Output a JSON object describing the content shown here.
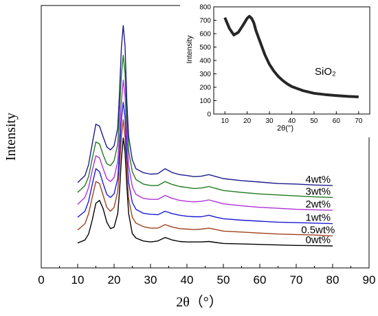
{
  "chart_data": [
    {
      "type": "line",
      "xlabel": "2θ（°）",
      "ylabel": "Intensity",
      "xlim": [
        0,
        90
      ],
      "xticks": [
        "0",
        "10",
        "20",
        "30",
        "40",
        "50",
        "60",
        "70",
        "80",
        "90"
      ],
      "y_tick_labels_shown": false,
      "grid": false,
      "series": [
        {
          "name": "0wt%",
          "color": "#000000",
          "x": [
            10,
            12,
            13,
            14,
            15,
            16,
            17,
            18,
            19,
            20,
            21,
            21.5,
            22,
            22.5,
            23,
            23.5,
            24,
            25,
            26,
            28,
            30,
            32,
            34,
            36,
            38,
            40,
            42,
            44,
            46,
            48,
            50,
            55,
            60,
            65,
            70,
            75,
            80
          ],
          "y": [
            0.6,
            1.2,
            2.4,
            5.2,
            8.6,
            9.2,
            7.5,
            4.8,
            3.5,
            3.8,
            6.5,
            11.0,
            17.5,
            21.8,
            19.0,
            12.0,
            6.5,
            2.5,
            1.6,
            1.0,
            0.8,
            1.0,
            1.7,
            1.2,
            0.9,
            0.8,
            0.8,
            0.8,
            0.9,
            0.7,
            0.5,
            0.4,
            0.3,
            0.2,
            0.1,
            0.05,
            0.0
          ]
        },
        {
          "name": "0.5wt%",
          "color": "#a0401e",
          "x": [
            10,
            12,
            13,
            14,
            15,
            16,
            17,
            18,
            19,
            20,
            21,
            21.5,
            22,
            22.5,
            23,
            23.5,
            24,
            25,
            26,
            28,
            30,
            32,
            34,
            36,
            38,
            40,
            42,
            44,
            46,
            48,
            50,
            55,
            60,
            65,
            70,
            75,
            80
          ],
          "y": [
            3.2,
            4.5,
            6.5,
            9.8,
            13.0,
            12.6,
            10.2,
            7.8,
            7.0,
            7.8,
            11.0,
            16.0,
            22.0,
            25.5,
            22.0,
            14.5,
            9.5,
            5.8,
            4.6,
            3.9,
            3.6,
            3.6,
            4.3,
            3.8,
            3.5,
            3.4,
            3.3,
            3.4,
            3.6,
            3.3,
            3.0,
            2.8,
            2.6,
            2.4,
            2.3,
            2.2,
            2.0
          ]
        },
        {
          "name": "1wt%",
          "color": "#1a1ad4",
          "x": [
            10,
            12,
            13,
            14,
            15,
            16,
            17,
            18,
            19,
            20,
            21,
            21.5,
            22,
            22.5,
            23,
            23.5,
            24,
            25,
            26,
            28,
            30,
            32,
            34,
            36,
            38,
            40,
            42,
            44,
            46,
            48,
            50,
            55,
            60,
            65,
            70,
            75,
            80
          ],
          "y": [
            5.8,
            7.0,
            9.0,
            12.4,
            15.6,
            15.0,
            12.6,
            10.4,
            9.8,
            10.5,
            13.6,
            19.0,
            25.5,
            29.0,
            26.0,
            18.0,
            12.8,
            8.8,
            7.4,
            6.6,
            6.4,
            6.3,
            7.0,
            6.5,
            6.2,
            6.0,
            5.9,
            5.9,
            6.2,
            5.8,
            5.5,
            5.2,
            5.0,
            4.8,
            4.7,
            4.6,
            4.5
          ]
        },
        {
          "name": "2wt%",
          "color": "#b030d8",
          "x": [
            10,
            12,
            13,
            14,
            15,
            16,
            17,
            18,
            19,
            20,
            21,
            21.5,
            22,
            22.5,
            23,
            23.5,
            24,
            25,
            26,
            28,
            30,
            32,
            34,
            36,
            38,
            40,
            42,
            44,
            46,
            48,
            50,
            55,
            60,
            65,
            70,
            75,
            80
          ],
          "y": [
            8.4,
            9.8,
            11.8,
            15.2,
            18.2,
            17.8,
            15.6,
            13.6,
            13.0,
            13.8,
            17.0,
            22.5,
            29.0,
            33.5,
            30.5,
            22.0,
            16.2,
            12.0,
            10.4,
            9.6,
            9.4,
            9.4,
            10.2,
            9.6,
            9.2,
            9.0,
            8.9,
            9.0,
            9.3,
            8.9,
            8.5,
            8.1,
            7.8,
            7.6,
            7.4,
            7.3,
            7.2
          ]
        },
        {
          "name": "3wt%",
          "color": "#1e7a1e",
          "x": [
            10,
            12,
            13,
            14,
            15,
            16,
            17,
            18,
            19,
            20,
            21,
            21.5,
            22,
            22.5,
            23,
            23.5,
            24,
            25,
            26,
            28,
            30,
            32,
            34,
            36,
            38,
            40,
            42,
            44,
            46,
            48,
            50,
            55,
            60,
            65,
            70,
            75,
            80
          ],
          "y": [
            10.8,
            12.2,
            14.0,
            17.6,
            21.0,
            20.6,
            18.4,
            16.6,
            16.2,
            17.2,
            20.5,
            27.0,
            34.5,
            38.5,
            35.0,
            25.5,
            19.2,
            15.0,
            13.4,
            12.5,
            12.2,
            12.2,
            13.0,
            12.4,
            12.0,
            11.8,
            11.6,
            11.7,
            12.0,
            11.6,
            11.2,
            10.8,
            10.5,
            10.3,
            10.1,
            9.9,
            9.8
          ]
        },
        {
          "name": "4wt%",
          "color": "#1a1a8c",
          "x": [
            10,
            12,
            13,
            14,
            15,
            16,
            17,
            18,
            19,
            20,
            21,
            21.5,
            22,
            22.5,
            23,
            23.5,
            24,
            25,
            26,
            28,
            30,
            32,
            34,
            36,
            38,
            40,
            42,
            44,
            46,
            48,
            50,
            55,
            60,
            65,
            70,
            75,
            80
          ],
          "y": [
            12.8,
            14.2,
            16.4,
            20.6,
            24.6,
            24.2,
            22.0,
            20.0,
            19.4,
            20.2,
            23.8,
            31.0,
            40.0,
            44.5,
            40.5,
            29.0,
            22.0,
            17.4,
            15.6,
            14.8,
            14.5,
            14.6,
            15.6,
            14.8,
            14.4,
            14.2,
            14.0,
            14.1,
            14.4,
            14.0,
            13.6,
            13.2,
            12.9,
            12.6,
            12.5,
            12.3,
            12.2
          ]
        }
      ]
    },
    {
      "type": "line",
      "xlabel": "2θ(°)",
      "ylabel": "Intensity",
      "xlim": [
        5,
        75
      ],
      "ylim": [
        0,
        800
      ],
      "xticks": [
        "10",
        "20",
        "30",
        "40",
        "50",
        "60",
        "70"
      ],
      "yticks": [
        "0",
        "100",
        "200",
        "300",
        "400",
        "500",
        "600",
        "700",
        "800"
      ],
      "annotation": "SiO₂",
      "series": [
        {
          "name": "SiO₂",
          "color": "#000000",
          "x": [
            10,
            12,
            14,
            16,
            18,
            20,
            21,
            22,
            23,
            24,
            26,
            28,
            30,
            32,
            34,
            36,
            38,
            40,
            45,
            50,
            55,
            60,
            65,
            70
          ],
          "y": [
            720,
            640,
            590,
            610,
            660,
            715,
            730,
            715,
            680,
            620,
            530,
            440,
            370,
            320,
            280,
            250,
            225,
            205,
            175,
            155,
            145,
            138,
            132,
            128
          ]
        }
      ]
    }
  ]
}
